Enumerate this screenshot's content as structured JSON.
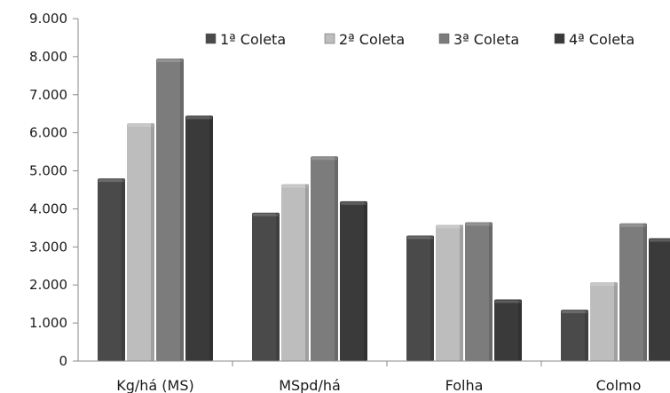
{
  "chart_data": {
    "type": "bar",
    "categories": [
      "Kg/há (MS)",
      "MSpd/há",
      "Folha",
      "Colmo"
    ],
    "series": [
      {
        "name": "1ª Coleta",
        "values": [
          4800,
          3900,
          3300,
          1350
        ],
        "color": "#4a4a4a"
      },
      {
        "name": "2ª Coleta",
        "values": [
          6250,
          4650,
          3580,
          2070
        ],
        "color": "#bdbdbd"
      },
      {
        "name": "3ª Coleta",
        "values": [
          7950,
          5380,
          3650,
          3620
        ],
        "color": "#7c7c7c"
      },
      {
        "name": "4ª Coleta",
        "values": [
          6450,
          4200,
          1620,
          3230
        ],
        "color": "#3a3a3a"
      }
    ],
    "y_ticks": [
      "0",
      "1.000",
      "2.000",
      "3.000",
      "4.000",
      "5.000",
      "6.000",
      "7.000",
      "8.000",
      "9.000"
    ],
    "ylim": [
      0,
      9000
    ],
    "title": "",
    "xlabel": "",
    "ylabel": "",
    "legend_position": "top-right",
    "grid": false
  }
}
